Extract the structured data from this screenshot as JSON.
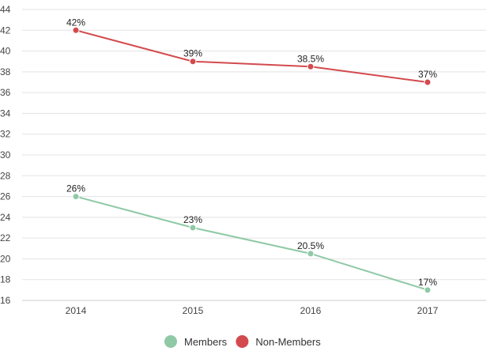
{
  "chart_data": {
    "type": "line",
    "categories": [
      "2014",
      "2015",
      "2016",
      "2017"
    ],
    "ylim": [
      16,
      44
    ],
    "yticks": [
      16,
      18,
      20,
      22,
      24,
      26,
      28,
      30,
      32,
      34,
      36,
      38,
      40,
      42,
      44
    ],
    "grid": true,
    "legend_position": "bottom",
    "title": "",
    "xlabel": "",
    "ylabel": "",
    "series": [
      {
        "name": "Members",
        "color": "#8fc9a6",
        "values": [
          26,
          23,
          20.5,
          17
        ],
        "labels": [
          "26%",
          "23%",
          "20.5%",
          "17%"
        ]
      },
      {
        "name": "Non-Members",
        "color": "#d34a4e",
        "values": [
          42,
          39,
          38.5,
          37
        ],
        "labels": [
          "42%",
          "39%",
          "38.5%",
          "37%"
        ]
      }
    ]
  }
}
